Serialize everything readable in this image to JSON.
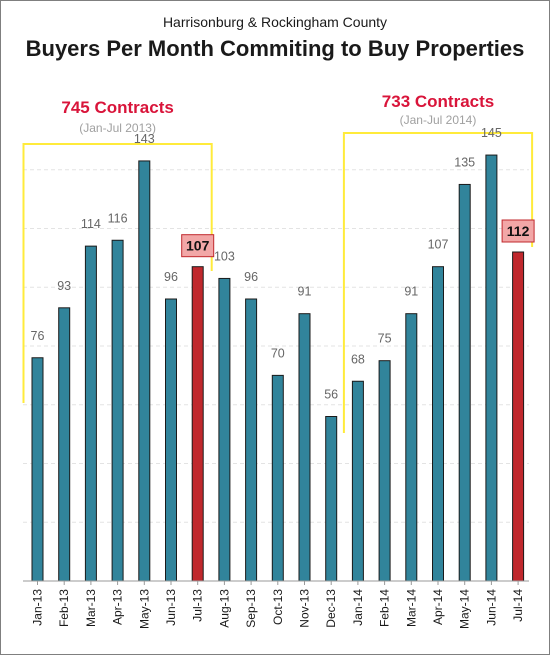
{
  "chart_data": {
    "type": "bar",
    "subtitle": "Harrisonburg & Rockingham County",
    "title": "Buyers Per Month Commiting to Buy Properties",
    "xlabel": "",
    "ylabel": "",
    "ylim": [
      0,
      160
    ],
    "grid": true,
    "categories": [
      "Jan-13",
      "Feb-13",
      "Mar-13",
      "Apr-13",
      "May-13",
      "Jun-13",
      "Jul-13",
      "Aug-13",
      "Sep-13",
      "Oct-13",
      "Nov-13",
      "Dec-13",
      "Jan-14",
      "Feb-14",
      "Mar-14",
      "Apr-14",
      "May-14",
      "Jun-14",
      "Jul-14"
    ],
    "values": [
      76,
      93,
      114,
      116,
      143,
      96,
      107,
      103,
      96,
      70,
      91,
      56,
      68,
      75,
      91,
      107,
      135,
      145,
      112
    ],
    "highlighted": [
      "Jul-13",
      "Jul-14"
    ],
    "colors": {
      "bar": "#31849b",
      "highlight": "#c0282d",
      "highlight_label_bg": "#f2a7a7",
      "bracket": "#ffeb3b",
      "group_label": "#d9143a"
    },
    "annotations": [
      {
        "label": "745 Contracts",
        "range": "(Jan-Jul 2013)",
        "from": "Jan-13",
        "to": "Jul-13"
      },
      {
        "label": "733 Contracts",
        "range": "(Jan-Jul 2014)",
        "from": "Jan-14",
        "to": "Jul-14"
      }
    ]
  }
}
